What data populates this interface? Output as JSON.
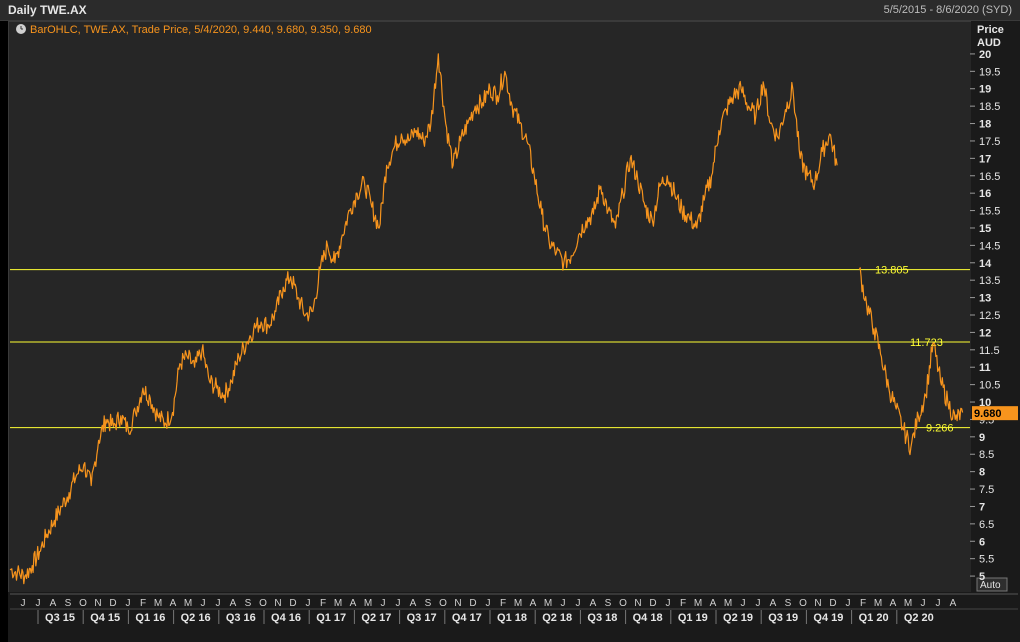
{
  "header": {
    "title": "Daily TWE.AX",
    "date_range": "5/5/2015 - 8/6/2020 (SYD)"
  },
  "legend": {
    "icon": "clock-icon",
    "text": "BarOHLC, TWE.AX, Trade Price,  5/4/2020, 9.440, 9.680, 9.350, 9.680"
  },
  "y_axis": {
    "label1": "Price",
    "label2": "AUD",
    "auto_label": "Auto"
  },
  "colors": {
    "series": "#f7941d",
    "hline": "#ffff33",
    "label_box": "#f7941d"
  },
  "chart_data": {
    "type": "line",
    "ylim": [
      4.6,
      20.4
    ],
    "y_ticks": [
      "5",
      "5.5",
      "6",
      "6.5",
      "7",
      "7.5",
      "8",
      "8.5",
      "9",
      "9.5",
      "10",
      "10.5",
      "11",
      "11.5",
      "12",
      "12.5",
      "13",
      "13.5",
      "14",
      "14.5",
      "15",
      "15.5",
      "16",
      "16.5",
      "17",
      "17.5",
      "18",
      "18.5",
      "19",
      "19.5",
      "20"
    ],
    "month_labels": [
      "J",
      "J",
      "A",
      "S",
      "O",
      "N",
      "D",
      "J",
      "F",
      "M",
      "A",
      "M",
      "J",
      "J",
      "A",
      "S",
      "O",
      "N",
      "D",
      "J",
      "F",
      "M",
      "A",
      "M",
      "J",
      "J",
      "A",
      "S",
      "O",
      "N",
      "D",
      "J",
      "F",
      "M",
      "A",
      "M",
      "J",
      "J",
      "A",
      "S",
      "O",
      "N",
      "D",
      "J",
      "F",
      "M",
      "A",
      "M",
      "J",
      "J",
      "A",
      "S",
      "O",
      "N",
      "D",
      "J",
      "F",
      "M",
      "A",
      "M",
      "J",
      "J",
      "A"
    ],
    "quarter_labels": [
      "Q3 15",
      "Q4 15",
      "Q1 16",
      "Q2 16",
      "Q3 16",
      "Q4 16",
      "Q1 17",
      "Q2 17",
      "Q3 17",
      "Q4 17",
      "Q1 18",
      "Q2 18",
      "Q3 18",
      "Q4 18",
      "Q1 19",
      "Q2 19",
      "Q3 19",
      "Q4 19",
      "Q1 20",
      "Q2 20"
    ],
    "horizontal_lines": [
      {
        "value": 13.805,
        "label": "13.805"
      },
      {
        "value": 11.723,
        "label": "11.723"
      },
      {
        "value": 9.266,
        "label": "9.266"
      }
    ],
    "last_price": {
      "value": 9.68,
      "label": "9.680"
    },
    "series": [
      {
        "name": "TWE.AX",
        "points": [
          [
            0,
            5.2
          ],
          [
            1,
            5.1
          ],
          [
            2,
            5.0
          ],
          [
            3,
            5.3
          ],
          [
            4,
            5.7
          ],
          [
            5,
            6.2
          ],
          [
            6,
            6.6
          ],
          [
            7,
            7.0
          ],
          [
            8,
            7.4
          ],
          [
            9,
            7.9
          ],
          [
            10,
            8.2
          ],
          [
            11,
            7.6
          ],
          [
            12,
            8.9
          ],
          [
            13,
            9.5
          ],
          [
            14,
            9.3
          ],
          [
            15,
            9.6
          ],
          [
            16,
            9.2
          ],
          [
            17,
            9.7
          ],
          [
            18,
            10.4
          ],
          [
            19,
            10.1
          ],
          [
            20,
            9.6
          ],
          [
            21,
            9.4
          ],
          [
            22,
            9.7
          ],
          [
            23,
            11.1
          ],
          [
            24,
            11.3
          ],
          [
            25,
            11.0
          ],
          [
            26,
            11.5
          ],
          [
            27,
            10.6
          ],
          [
            28,
            10.4
          ],
          [
            29,
            10.2
          ],
          [
            30,
            10.6
          ],
          [
            31,
            11.3
          ],
          [
            32,
            11.7
          ],
          [
            33,
            12.1
          ],
          [
            34,
            12.3
          ],
          [
            35,
            12.2
          ],
          [
            36,
            12.6
          ],
          [
            37,
            13.3
          ],
          [
            38,
            13.6
          ],
          [
            39,
            13.0
          ],
          [
            40,
            12.5
          ],
          [
            41,
            12.6
          ],
          [
            42,
            13.8
          ],
          [
            43,
            14.5
          ],
          [
            44,
            14.0
          ],
          [
            45,
            14.8
          ],
          [
            46,
            15.5
          ],
          [
            47,
            16.0
          ],
          [
            48,
            16.3
          ],
          [
            49,
            15.6
          ],
          [
            50,
            15.0
          ],
          [
            51,
            16.8
          ],
          [
            52,
            17.3
          ],
          [
            53,
            17.7
          ],
          [
            54,
            17.5
          ],
          [
            55,
            17.8
          ],
          [
            56,
            17.5
          ],
          [
            57,
            18.0
          ],
          [
            58,
            20.0
          ],
          [
            59,
            18.0
          ],
          [
            60,
            16.8
          ],
          [
            61,
            17.5
          ],
          [
            62,
            18.0
          ],
          [
            63,
            18.5
          ],
          [
            64,
            18.6
          ],
          [
            65,
            19.0
          ],
          [
            66,
            18.8
          ],
          [
            67,
            19.5
          ],
          [
            68,
            18.5
          ],
          [
            69,
            18.0
          ],
          [
            70,
            17.5
          ],
          [
            71,
            16.5
          ],
          [
            72,
            15.4
          ],
          [
            73,
            14.6
          ],
          [
            74,
            14.3
          ],
          [
            75,
            14.0
          ],
          [
            76,
            14.2
          ],
          [
            77,
            14.8
          ],
          [
            78,
            15.2
          ],
          [
            79,
            15.4
          ],
          [
            80,
            16.2
          ],
          [
            81,
            15.5
          ],
          [
            82,
            15.0
          ],
          [
            83,
            16.0
          ],
          [
            84,
            17.0
          ],
          [
            85,
            16.4
          ],
          [
            86,
            15.6
          ],
          [
            87,
            15.2
          ],
          [
            88,
            16.2
          ],
          [
            89,
            16.5
          ],
          [
            90,
            16.0
          ],
          [
            91,
            15.5
          ],
          [
            92,
            15.3
          ],
          [
            93,
            15.0
          ],
          [
            94,
            15.8
          ],
          [
            95,
            16.5
          ],
          [
            96,
            17.8
          ],
          [
            97,
            18.4
          ],
          [
            98,
            18.8
          ],
          [
            99,
            19.0
          ],
          [
            100,
            18.5
          ],
          [
            101,
            18.2
          ],
          [
            102,
            19.2
          ],
          [
            103,
            18.0
          ],
          [
            104,
            17.6
          ],
          [
            105,
            18.4
          ],
          [
            106,
            19.0
          ],
          [
            107,
            17.0
          ],
          [
            108,
            16.5
          ],
          [
            109,
            16.3
          ],
          [
            110,
            17.2
          ],
          [
            111,
            17.7
          ],
          [
            112,
            16.8
          ]
        ]
      },
      {
        "name": "TWE.AX 2020",
        "points": [
          [
            115,
            13.8
          ],
          [
            116,
            12.8
          ],
          [
            117,
            12.1
          ],
          [
            118,
            11.3
          ],
          [
            119,
            10.4
          ],
          [
            120,
            9.8
          ],
          [
            121,
            9.2
          ],
          [
            122,
            8.7
          ],
          [
            123,
            9.6
          ],
          [
            124,
            10.2
          ],
          [
            125,
            11.7
          ],
          [
            126,
            10.6
          ],
          [
            127,
            10.0
          ],
          [
            128,
            9.5
          ],
          [
            129,
            9.7
          ]
        ]
      }
    ]
  }
}
